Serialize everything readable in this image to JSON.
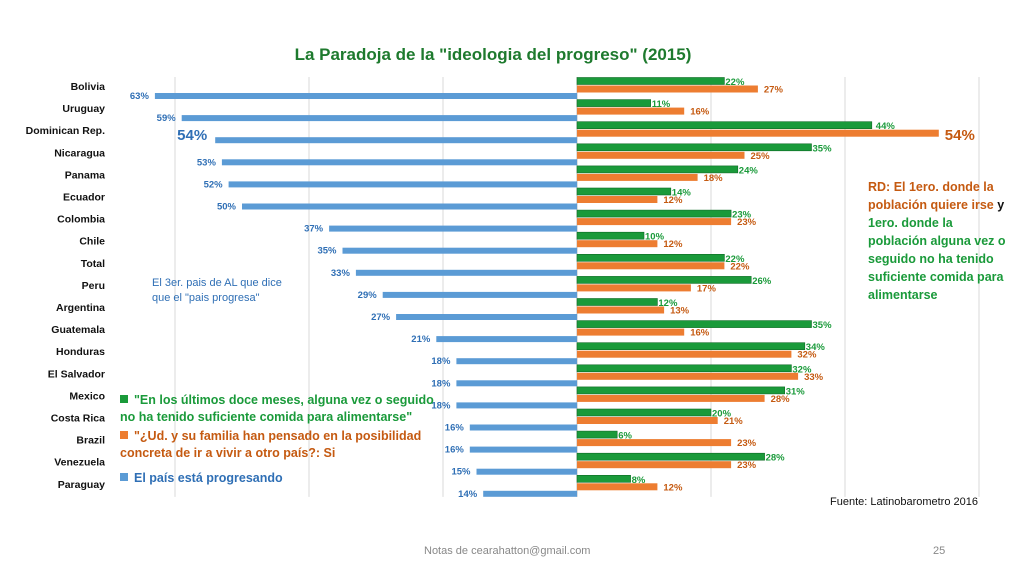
{
  "chart_data": {
    "type": "bar",
    "orientation": "horizontal",
    "title": "La Paradoja de la \"ideologia del progreso\" (2015)",
    "categories": [
      "Bolivia",
      "Uruguay",
      "Dominican Rep.",
      "Nicaragua",
      "Panama",
      "Ecuador",
      "Colombia",
      "Chile",
      "Total",
      "Peru",
      "Argentina",
      "Guatemala",
      "Honduras",
      "El Salvador",
      "Mexico",
      "Costa Rica",
      "Brazil",
      "Venezuela",
      "Paraguay"
    ],
    "series": [
      {
        "name": "\"En los últimos doce meses, alguna vez o seguido no ha tenido suficiente comida para alimentarse\"",
        "color": "#1a9a3a",
        "values": [
          22,
          11,
          44,
          35,
          24,
          14,
          23,
          10,
          22,
          26,
          12,
          35,
          34,
          32,
          31,
          20,
          6,
          28,
          8
        ]
      },
      {
        "name": "\"¿Ud. y su familia han pensado en la posibilidad concreta de ir a vivir a otro país?: Si",
        "color": "#ed7d31",
        "values": [
          27,
          16,
          54,
          25,
          18,
          12,
          23,
          12,
          22,
          17,
          13,
          16,
          32,
          33,
          28,
          21,
          23,
          23,
          12
        ]
      },
      {
        "name": "El país está progresando",
        "color": "#5b9bd5",
        "values": [
          63,
          59,
          54,
          53,
          52,
          50,
          37,
          35,
          33,
          29,
          27,
          21,
          18,
          18,
          18,
          16,
          16,
          15,
          14
        ]
      }
    ],
    "grid": true
  },
  "annotations": {
    "third_country_note": [
      "El 3er. pais de AL que dice",
      "que el \"pais progresa\""
    ],
    "side_note": {
      "part1": "RD: El 1ero. donde la población quiere irse",
      "connector": " y ",
      "part2": "1ero. donde la población alguna vez o seguido no ha tenido suficiente comida para alimentarse"
    }
  },
  "source": "Fuente: Latinobarometro 2016",
  "footer": {
    "notes": "Notas de cearahatton@gmail.com",
    "page": "25"
  },
  "colors": {
    "green": "#1a9a3a",
    "orange": "#ed7d31",
    "blue": "#5b9bd5",
    "title": "#1e7a2e"
  }
}
